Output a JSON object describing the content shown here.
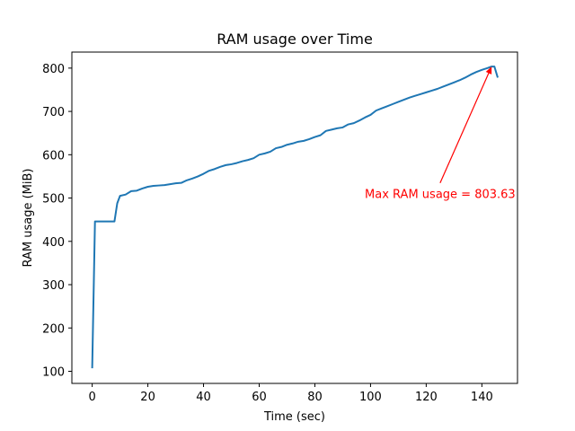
{
  "chart_data": {
    "type": "line",
    "title": "RAM usage over Time",
    "xlabel": "Time (sec)",
    "ylabel": "RAM usage (MiB)",
    "xlim": [
      -7.3,
      152.8
    ],
    "ylim": [
      72,
      837
    ],
    "xticks": [
      0,
      20,
      40,
      60,
      80,
      100,
      120,
      140
    ],
    "yticks": [
      100,
      200,
      300,
      400,
      500,
      600,
      700,
      800
    ],
    "grid": false,
    "series": [
      {
        "color": "#1f77b4",
        "x": [
          0,
          1,
          2,
          4,
          6,
          8,
          9,
          10,
          12,
          14,
          16,
          18,
          20,
          22,
          24,
          26,
          28,
          30,
          32,
          34,
          36,
          38,
          40,
          42,
          44,
          46,
          48,
          50,
          52,
          54,
          56,
          58,
          60,
          62,
          64,
          66,
          68,
          70,
          72,
          74,
          76,
          78,
          80,
          82,
          84,
          86,
          88,
          90,
          92,
          94,
          96,
          98,
          100,
          102,
          104,
          106,
          108,
          110,
          112,
          114,
          116,
          118,
          120,
          122,
          124,
          126,
          128,
          130,
          132,
          134,
          136,
          138,
          140,
          142,
          143.5,
          144.5,
          145.7
        ],
        "y": [
          107,
          446,
          446,
          446,
          446,
          446,
          488,
          505,
          508,
          516,
          517,
          522,
          526,
          528,
          529,
          530,
          532,
          534,
          535,
          541,
          545,
          550,
          556,
          563,
          567,
          572,
          576,
          578,
          581,
          585,
          588,
          592,
          600,
          603,
          607,
          615,
          618,
          623,
          626,
          630,
          632,
          636,
          641,
          645,
          655,
          658,
          661,
          663,
          670,
          673,
          679,
          686,
          692,
          702,
          707,
          712,
          717,
          722,
          727,
          732,
          736,
          740,
          744,
          748,
          752,
          757,
          762,
          767,
          772,
          778,
          785,
          791,
          796,
          800,
          803.63,
          803.63,
          778
        ]
      }
    ],
    "annotations": [
      {
        "text": "Max RAM usage = 803.63",
        "x": 143.5,
        "y": 803.63,
        "text_x": 125,
        "text_y": 510,
        "color": "#ff0000"
      }
    ]
  }
}
